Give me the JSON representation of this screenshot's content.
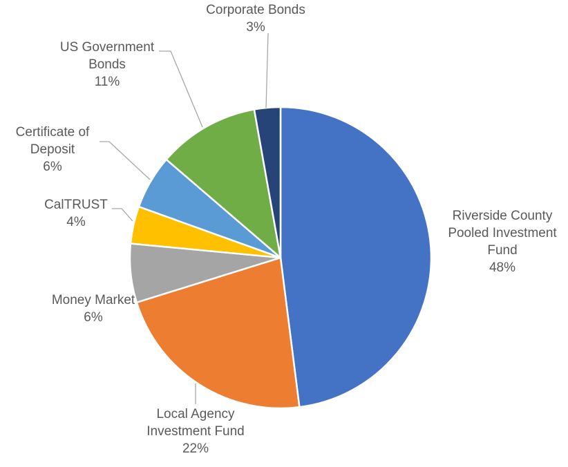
{
  "chart_data": {
    "type": "pie",
    "title": "",
    "legend": "none",
    "slices": [
      {
        "name": "Riverside County Pooled Investment Fund",
        "label_lines": [
          "Riverside County",
          "Pooled Investment",
          "Fund"
        ],
        "pct_label": "48%",
        "value": 48.0,
        "color": "#4472C4"
      },
      {
        "name": "Local Agency Investment Fund",
        "label_lines": [
          "Local Agency",
          "Investment Fund"
        ],
        "pct_label": "22%",
        "value": 22.2,
        "color": "#ED7D31"
      },
      {
        "name": "Money Market",
        "label_lines": [
          "Money Market"
        ],
        "pct_label": "6%",
        "value": 6.3,
        "color": "#A5A5A5"
      },
      {
        "name": "CalTRUST",
        "label_lines": [
          "CalTRUST"
        ],
        "pct_label": "4%",
        "value": 4.0,
        "color": "#FFC000"
      },
      {
        "name": "Certificate of Deposit",
        "label_lines": [
          "Certificate of",
          "Deposit"
        ],
        "pct_label": "6%",
        "value": 5.8,
        "color": "#5B9BD5"
      },
      {
        "name": "US Government Bonds",
        "label_lines": [
          "US Government",
          "Bonds"
        ],
        "pct_label": "11%",
        "value": 10.9,
        "color": "#70AD47"
      },
      {
        "name": "Corporate Bonds",
        "label_lines": [
          "Corporate Bonds"
        ],
        "pct_label": "3%",
        "value": 2.8,
        "color": "#264478"
      }
    ]
  }
}
